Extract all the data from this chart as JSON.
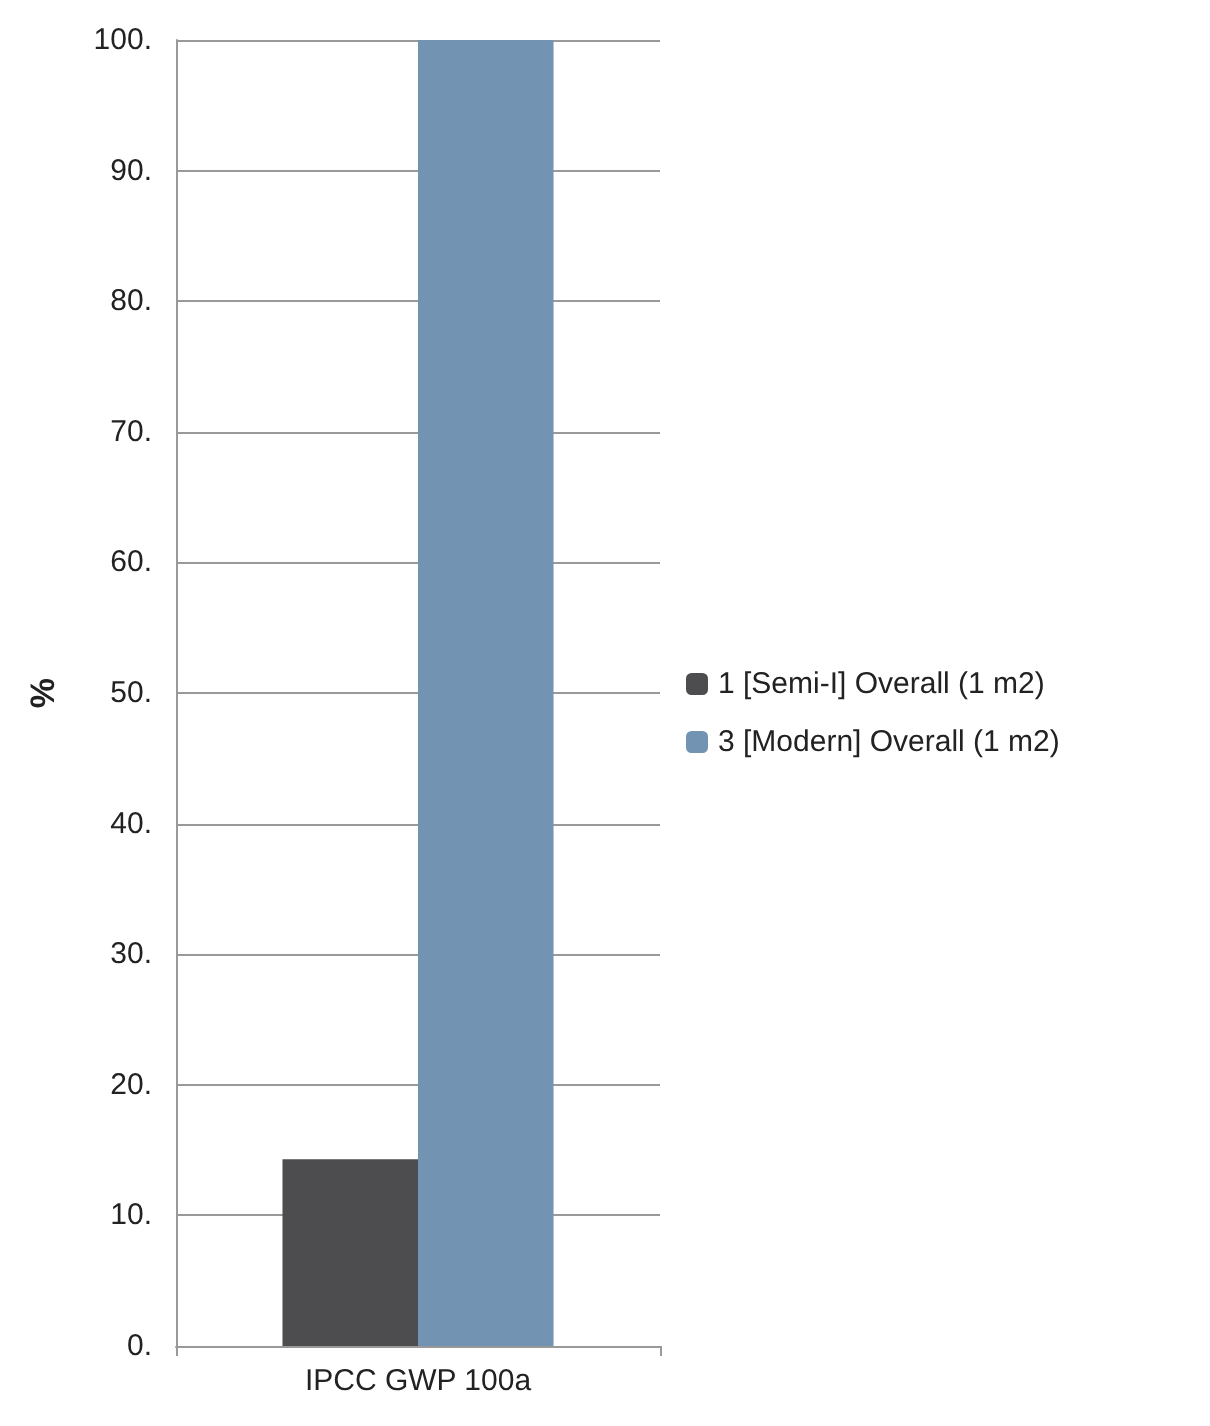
{
  "chart_data": {
    "type": "bar",
    "categories": [
      "IPCC GWP 100a"
    ],
    "ylabel": "%",
    "series": [
      {
        "name": "1 [Semi-I] Overall (1 m2)",
        "color": "#4d4d4f",
        "values": [
          14.3
        ]
      },
      {
        "name": "3 [Modern] Overall (1 m2)",
        "color": "#7393b3",
        "values": [
          100
        ]
      }
    ],
    "ylim": [
      0,
      100
    ],
    "yticks": [
      {
        "value": 0,
        "label": "0."
      },
      {
        "value": 10,
        "label": "10."
      },
      {
        "value": 20,
        "label": "20."
      },
      {
        "value": 30,
        "label": "30."
      },
      {
        "value": 40,
        "label": "40."
      },
      {
        "value": 50,
        "label": "50."
      },
      {
        "value": 60,
        "label": "60."
      },
      {
        "value": 70,
        "label": "70."
      },
      {
        "value": 80,
        "label": "80."
      },
      {
        "value": 90,
        "label": "90."
      },
      {
        "value": 100,
        "label": "100."
      }
    ],
    "grid": "y",
    "legend": "right"
  }
}
